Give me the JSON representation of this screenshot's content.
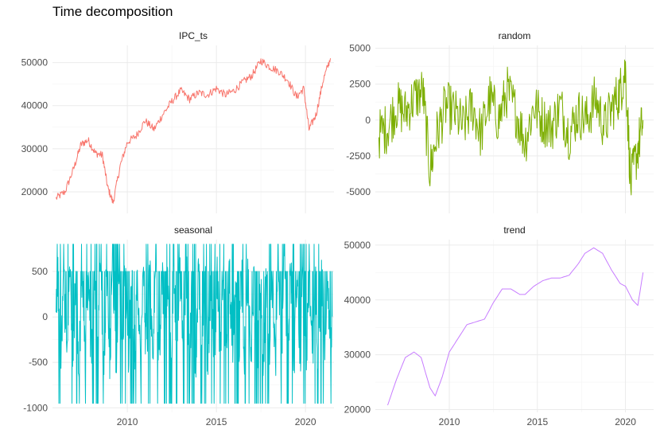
{
  "title": "Time decomposition",
  "chart_data": [
    {
      "type": "line",
      "title": "IPC_ts",
      "color": "#F8766D",
      "xlim": [
        2005.8,
        2021.6
      ],
      "ylim": [
        15000,
        54000
      ],
      "yticks": [
        20000,
        30000,
        40000,
        50000
      ],
      "ytick_labels": [
        "20000",
        "30000",
        "40000",
        "50000"
      ],
      "xticks": [
        2010,
        2015,
        2020
      ],
      "xtick_labels": [
        "2010",
        "2015",
        "2020"
      ],
      "show_x_labels": false,
      "noise": 900,
      "series": [
        {
          "x": [
            2006.0,
            2006.5,
            2007.0,
            2007.4,
            2007.8,
            2008.2,
            2008.6,
            2008.9,
            2009.2,
            2009.6,
            2010.0,
            2010.5,
            2011.0,
            2011.5,
            2012.0,
            2012.5,
            2013.0,
            2013.5,
            2014.0,
            2014.5,
            2015.0,
            2015.5,
            2016.0,
            2016.5,
            2017.0,
            2017.5,
            2018.0,
            2018.5,
            2019.0,
            2019.5,
            2019.9,
            2020.2,
            2020.6,
            2021.0,
            2021.4
          ],
          "values": [
            18500,
            20000,
            25500,
            31000,
            32000,
            29000,
            28500,
            21000,
            17500,
            26000,
            31500,
            33000,
            36500,
            34500,
            38000,
            41000,
            43500,
            41500,
            43000,
            42500,
            44000,
            42500,
            43500,
            45500,
            47000,
            50500,
            49000,
            48000,
            46000,
            42000,
            44000,
            34500,
            38000,
            46000,
            51000
          ]
        }
      ]
    },
    {
      "type": "line",
      "title": "random",
      "color": "#7CAE00",
      "xlim": [
        2005.8,
        2021.6
      ],
      "ylim": [
        -6500,
        5200
      ],
      "yticks": [
        -5000,
        -2500,
        0,
        2500,
        5000
      ],
      "ytick_labels": [
        "-5000",
        "-2500",
        "0",
        "2500",
        "5000"
      ],
      "xticks": [
        2010,
        2015,
        2020
      ],
      "xtick_labels": [
        "2010",
        "2015",
        "2020"
      ],
      "show_x_labels": false,
      "noise": 1800,
      "series": [
        {
          "x": [
            2006.0,
            2006.5,
            2007.0,
            2007.5,
            2008.0,
            2008.5,
            2008.9,
            2009.3,
            2009.8,
            2010.3,
            2010.8,
            2011.3,
            2011.8,
            2012.3,
            2012.8,
            2013.3,
            2013.8,
            2014.3,
            2014.8,
            2015.3,
            2015.8,
            2016.3,
            2016.8,
            2017.3,
            2017.8,
            2018.3,
            2018.8,
            2019.3,
            2019.7,
            2020.0,
            2020.3,
            2020.7,
            2021.0
          ],
          "values": [
            -1000,
            -500,
            1000,
            500,
            1500,
            2000,
            -3500,
            -1000,
            1000,
            500,
            -500,
            1000,
            -1000,
            1500,
            0,
            2000,
            500,
            -1500,
            1000,
            0,
            -500,
            1000,
            -1000,
            500,
            0,
            1500,
            -500,
            1000,
            2000,
            3500,
            -4500,
            -2000,
            0
          ]
        }
      ]
    },
    {
      "type": "line",
      "title": "seasonal",
      "color": "#00BFC4",
      "xlim": [
        2005.8,
        2021.6
      ],
      "ylim": [
        -1050,
        850
      ],
      "yticks": [
        -1000,
        -500,
        0,
        500
      ],
      "ytick_labels": [
        "-1000",
        "-500",
        "0",
        "500"
      ],
      "xticks": [
        2010,
        2015,
        2020
      ],
      "xtick_labels": [
        "2010",
        "2015",
        "2020"
      ],
      "show_x_labels": true,
      "series": [
        {
          "x": [
            2006.0,
            2021.5
          ],
          "values": [
            500,
            -950
          ]
        }
      ]
    },
    {
      "type": "line",
      "title": "trend",
      "color": "#C77CFF",
      "xlim": [
        2005.8,
        2021.6
      ],
      "ylim": [
        19500,
        51000
      ],
      "yticks": [
        20000,
        30000,
        40000,
        50000
      ],
      "ytick_labels": [
        "20000",
        "30000",
        "40000",
        "50000"
      ],
      "xticks": [
        2010,
        2015,
        2020
      ],
      "xtick_labels": [
        "2010",
        "2015",
        "2020"
      ],
      "show_x_labels": true,
      "series": [
        {
          "x": [
            2006.5,
            2007.0,
            2007.5,
            2008.0,
            2008.4,
            2008.9,
            2009.2,
            2009.6,
            2010.0,
            2010.5,
            2011.0,
            2011.5,
            2012.0,
            2012.5,
            2013.0,
            2013.5,
            2014.0,
            2014.3,
            2014.8,
            2015.3,
            2015.8,
            2016.3,
            2016.8,
            2017.3,
            2017.7,
            2018.2,
            2018.7,
            2019.2,
            2019.7,
            2020.0,
            2020.4,
            2020.7,
            2021.0
          ],
          "values": [
            20800,
            25500,
            29500,
            30500,
            29500,
            24000,
            22500,
            26000,
            30500,
            33000,
            35500,
            36000,
            36500,
            39500,
            42000,
            42000,
            41000,
            41000,
            42500,
            43500,
            44000,
            44000,
            44500,
            46500,
            48500,
            49500,
            48500,
            45500,
            43000,
            42500,
            40000,
            39000,
            45000
          ]
        }
      ]
    }
  ]
}
